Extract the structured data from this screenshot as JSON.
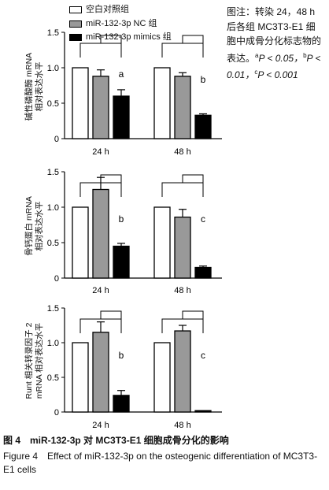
{
  "legend": {
    "items": [
      {
        "label": "空白对照组",
        "color": "#ffffff"
      },
      {
        "label": "miR-132-3p NC 组",
        "color": "#999999"
      },
      {
        "label": "miR-132-3p mimics 组",
        "color": "#000000"
      }
    ]
  },
  "note": {
    "prefix": "图注：转染 24，48 h 后各组 MC3T3-E1 细胞中成骨分化标志物的表达。",
    "a_sup": "a",
    "a_text": "P < 0.05，",
    "b_sup": "b",
    "b_text": "P < 0.01，",
    "c_sup": "c",
    "c_text": "P < 0.001"
  },
  "caption": {
    "zh": "图 4　miR-132-3p 对 MC3T3-E1 细胞成骨分化的影响",
    "en": "Figure 4　Effect of miR-132-3p on the osteogenic differentiation of MC3T3-E1 cells"
  },
  "chart_data": [
    {
      "type": "bar",
      "ylabel_lines": [
        "碱性磷酸酶 mRNA",
        "相对表达水平"
      ],
      "categories": [
        "24 h",
        "48 h"
      ],
      "yticks": [
        "0",
        "0.5",
        "1.0",
        "1.5"
      ],
      "ylim": [
        0,
        1.5
      ],
      "series": [
        {
          "name": "空白对照组",
          "values": [
            1.0,
            1.0
          ],
          "errors": [
            0,
            0
          ]
        },
        {
          "name": "miR-132-3p NC 组",
          "values": [
            0.88,
            0.88
          ],
          "errors": [
            0.09,
            0.05
          ]
        },
        {
          "name": "miR-132-3p mimics 组",
          "values": [
            0.6,
            0.33
          ],
          "errors": [
            0.09,
            0.02
          ]
        }
      ],
      "annotations": [
        "a",
        "b"
      ]
    },
    {
      "type": "bar",
      "ylabel_lines": [
        "骨钙蛋白 mRNA",
        "相对表达水平"
      ],
      "categories": [
        "24 h",
        "48 h"
      ],
      "yticks": [
        "0",
        "0.5",
        "1.0",
        "1.5"
      ],
      "ylim": [
        0,
        1.5
      ],
      "series": [
        {
          "name": "空白对照组",
          "values": [
            1.0,
            1.0
          ],
          "errors": [
            0,
            0
          ]
        },
        {
          "name": "miR-132-3p NC 组",
          "values": [
            1.25,
            0.86
          ],
          "errors": [
            0.17,
            0.11
          ]
        },
        {
          "name": "miR-132-3p mimics 组",
          "values": [
            0.45,
            0.15
          ],
          "errors": [
            0.04,
            0.02
          ]
        }
      ],
      "annotations": [
        "b",
        "c"
      ]
    },
    {
      "type": "bar",
      "ylabel_lines": [
        "Runt 相关转录因子 2",
        "mRNA 相对表达水平"
      ],
      "categories": [
        "24 h",
        "48 h"
      ],
      "yticks": [
        "0",
        "0.5",
        "1.0",
        "1.5"
      ],
      "ylim": [
        0,
        1.5
      ],
      "series": [
        {
          "name": "空白对照组",
          "values": [
            1.0,
            1.0
          ],
          "errors": [
            0,
            0
          ]
        },
        {
          "name": "miR-132-3p NC 组",
          "values": [
            1.15,
            1.17
          ],
          "errors": [
            0.15,
            0.08
          ]
        },
        {
          "name": "miR-132-3p mimics 组",
          "values": [
            0.24,
            0.02
          ],
          "errors": [
            0.07,
            0
          ]
        }
      ],
      "annotations": [
        "b",
        "c"
      ]
    }
  ]
}
